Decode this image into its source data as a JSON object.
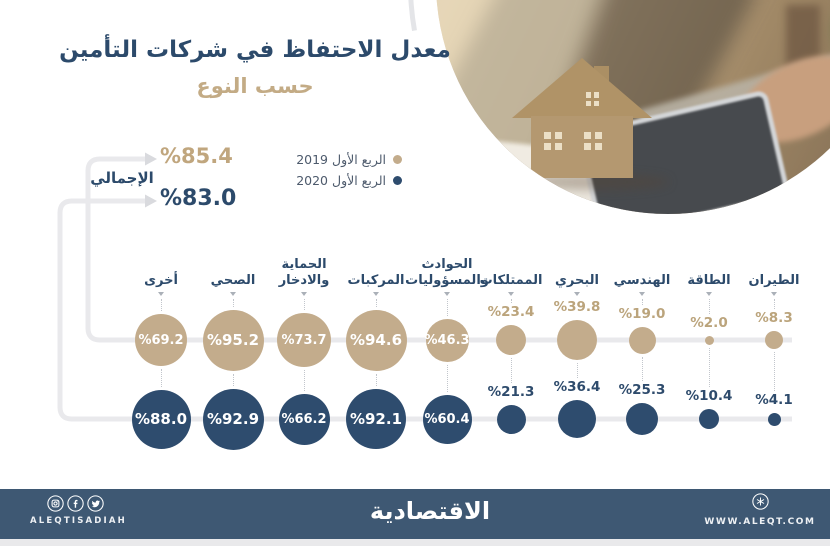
{
  "title": {
    "main": "معدل الاحتفاظ في شركات التأمين",
    "sub": "حسب النوع"
  },
  "legend": {
    "items": [
      {
        "label": "الربع الأول 2019",
        "color": "#c3ac8c"
      },
      {
        "label": "الربع الأول 2020",
        "color": "#2e4c6e"
      }
    ]
  },
  "totals": {
    "label": "الإجمالي",
    "q1_2019": "%85.4",
    "q1_2020": "%83.0"
  },
  "chart_data": {
    "type": "bubble",
    "rtl_layout": true,
    "categories": [
      "أخرى",
      "الصحي",
      "الحماية والادخار",
      "المركبات",
      "الحوادث والمسؤوليات",
      "الممتلكات",
      "البحري",
      "الهندسي",
      "الطاقة",
      "الطيران"
    ],
    "series": [
      {
        "name": "الربع الأول 2019",
        "color": "#c3ac8c",
        "text_color": "#bba47c",
        "values": [
          69.2,
          95.2,
          73.7,
          94.6,
          46.3,
          23.4,
          39.8,
          19.0,
          2.0,
          8.3
        ],
        "labels": [
          "%69.2",
          "%95.2",
          "%73.7",
          "%94.6",
          "%46.3",
          "%23.4",
          "%39.8",
          "%19.0",
          "%2.0",
          "%8.3"
        ]
      },
      {
        "name": "الربع الأول 2020",
        "color": "#2e4c6e",
        "text_color": "#2e4b6c",
        "values": [
          88.0,
          92.9,
          66.2,
          92.1,
          60.4,
          21.3,
          36.4,
          25.3,
          10.4,
          4.1
        ],
        "labels": [
          "%88.0",
          "%92.9",
          "%66.2",
          "%92.1",
          "%60.4",
          "%21.3",
          "%36.4",
          "%25.3",
          "%10.4",
          "%4.1"
        ]
      }
    ],
    "value_prefix": "%",
    "title": "معدل الاحتفاظ في شركات التأمين حسب النوع",
    "totals": {
      "q1_2019": 85.4,
      "q1_2020": 83.0
    }
  },
  "footer": {
    "brand": "الاقتصادية",
    "social_handle": "ALEQTISADIAH",
    "website": "WWW.ALEQT.COM"
  },
  "colors": {
    "navy": "#2c4a6b",
    "tan": "#c3ac8c",
    "footer": "#3e5873",
    "line_gray": "#e9e9ec",
    "arrow_gray": "#d9dade"
  }
}
